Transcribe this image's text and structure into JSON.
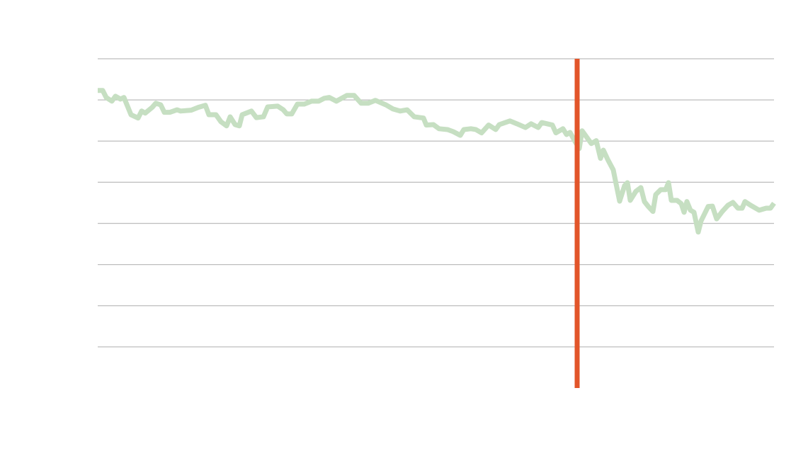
{
  "chart_data": {
    "type": "line",
    "x": [
      0,
      7,
      12,
      20,
      25,
      32,
      37,
      42,
      47,
      57,
      62,
      67,
      77,
      82,
      89,
      94,
      102,
      112,
      117,
      132,
      142,
      152,
      157,
      167,
      174,
      182,
      187,
      194,
      200,
      204,
      217,
      224,
      234,
      240,
      254,
      262,
      267,
      274,
      282,
      292,
      302,
      312,
      320,
      327,
      337,
      352,
      362,
      372,
      382,
      392,
      407,
      417,
      427,
      437,
      447,
      460,
      464,
      474,
      482,
      494,
      502,
      512,
      517,
      527,
      534,
      542,
      552,
      562,
      567,
      582,
      592,
      604,
      612,
      622,
      627,
      642,
      647,
      657,
      662,
      667,
      674,
      680,
      684,
      692,
      697,
      704,
      710,
      714,
      720,
      728,
      732,
      737,
      744,
      748,
      752,
      760,
      767,
      772,
      777,
      784,
      788,
      795,
      802,
      806,
      810,
      818,
      824,
      828,
      832,
      837,
      842,
      848,
      852,
      862,
      868,
      874,
      882,
      890,
      897,
      904,
      910,
      914,
      922,
      934,
      944,
      950,
      955
    ],
    "series": [
      {
        "color": "#c6dfc2",
        "values": [
          7.23,
          7.23,
          7.06,
          6.97,
          7.09,
          7.02,
          7.06,
          6.85,
          6.64,
          6.56,
          6.73,
          6.68,
          6.82,
          6.92,
          6.88,
          6.7,
          6.7,
          6.76,
          6.73,
          6.75,
          6.82,
          6.87,
          6.64,
          6.64,
          6.47,
          6.37,
          6.59,
          6.4,
          6.37,
          6.64,
          6.73,
          6.57,
          6.59,
          6.83,
          6.85,
          6.76,
          6.66,
          6.66,
          6.9,
          6.9,
          6.97,
          6.97,
          7.04,
          7.06,
          6.97,
          7.11,
          7.11,
          6.92,
          6.92,
          6.99,
          6.88,
          6.78,
          6.73,
          6.76,
          6.59,
          6.56,
          6.39,
          6.4,
          6.3,
          6.28,
          6.23,
          6.14,
          6.28,
          6.3,
          6.28,
          6.2,
          6.39,
          6.28,
          6.4,
          6.49,
          6.42,
          6.33,
          6.42,
          6.33,
          6.45,
          6.39,
          6.2,
          6.3,
          6.16,
          6.21,
          5.99,
          5.82,
          6.25,
          6.06,
          5.94,
          6.01,
          5.58,
          5.78,
          5.56,
          5.3,
          4.96,
          4.54,
          4.92,
          4.99,
          4.56,
          4.78,
          4.87,
          4.53,
          4.42,
          4.29,
          4.7,
          4.82,
          4.82,
          4.99,
          4.56,
          4.56,
          4.48,
          4.27,
          4.53,
          4.32,
          4.27,
          3.79,
          4.06,
          4.41,
          4.42,
          4.11,
          4.29,
          4.44,
          4.51,
          4.37,
          4.37,
          4.53,
          4.44,
          4.32,
          4.37,
          4.37,
          4.49
        ]
      }
    ],
    "vline": {
      "x": 677,
      "color": "#e2552a"
    },
    "xlim": [
      0,
      955
    ],
    "ylim": [
      0,
      8
    ],
    "yticks": [
      1,
      2,
      3,
      4,
      5,
      6,
      7,
      8
    ],
    "grid": true
  }
}
